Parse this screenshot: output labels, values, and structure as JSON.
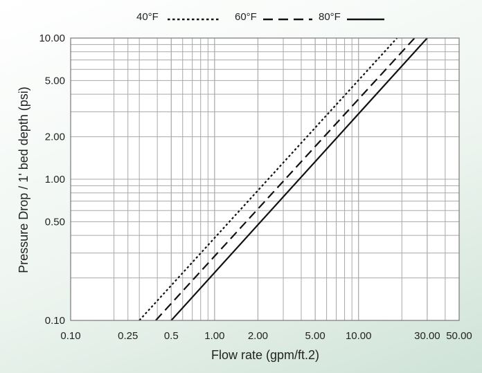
{
  "chart_data": {
    "type": "line",
    "xscale": "log",
    "yscale": "log",
    "xlabel": "Flow rate (gpm/ft.2)",
    "ylabel": "Pressure Drop / 1' bed depth (psi)",
    "xlim": [
      0.1,
      50
    ],
    "ylim": [
      0.1,
      10
    ],
    "x_ticks": [
      0.1,
      0.25,
      0.5,
      1,
      2,
      5,
      10,
      30,
      50
    ],
    "x_tick_labels": [
      "0.10",
      "0.25",
      "0.5",
      "1.00",
      "2.00",
      "5.00",
      "10.00",
      "30.00",
      "50.00"
    ],
    "y_ticks": [
      0.1,
      0.5,
      1,
      2,
      5,
      10
    ],
    "y_tick_labels": [
      "0.10",
      "0.50",
      "1.00",
      "2.00",
      "5.00",
      "10.00"
    ],
    "grid": true,
    "legend_position": "top",
    "colors": {
      "line": "#111111",
      "grid": "#a8a8a8",
      "plot_bg": "#ffffff"
    },
    "series": [
      {
        "name": "40°F",
        "style": "dotted",
        "x": [
          0.3,
          18.5
        ],
        "y": [
          0.1,
          10
        ]
      },
      {
        "name": "60°F",
        "style": "dashed",
        "x": [
          0.39,
          24.5
        ],
        "y": [
          0.1,
          10
        ]
      },
      {
        "name": "80°F",
        "style": "solid",
        "x": [
          0.5,
          30
        ],
        "y": [
          0.1,
          10
        ]
      }
    ]
  }
}
